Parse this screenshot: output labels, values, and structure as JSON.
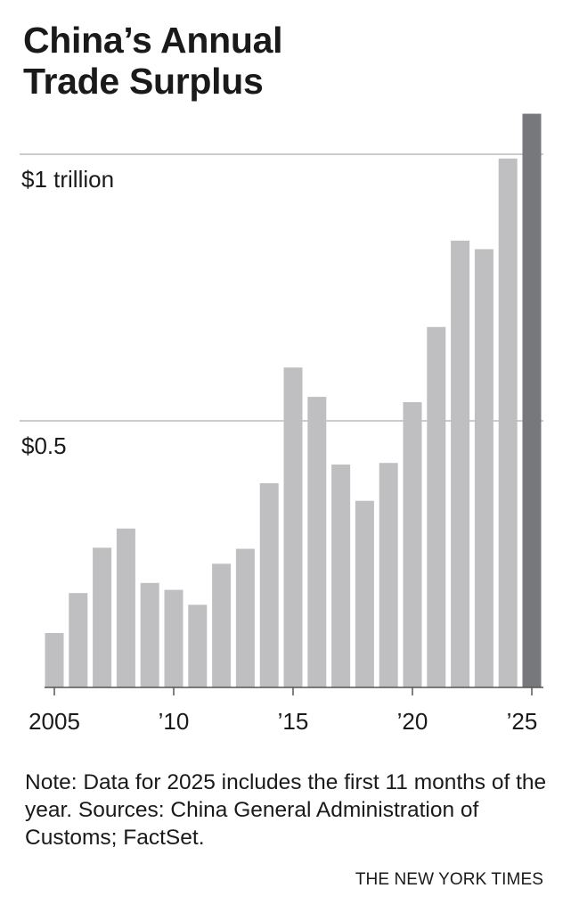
{
  "title_lines": [
    "China’s Annual",
    "Trade Surplus"
  ],
  "chart_data": {
    "type": "bar",
    "x": [
      2005,
      2006,
      2007,
      2008,
      2009,
      2010,
      2011,
      2012,
      2013,
      2014,
      2015,
      2016,
      2017,
      2018,
      2019,
      2020,
      2021,
      2022,
      2023,
      2024,
      2025
    ],
    "values": [
      0.102,
      0.177,
      0.262,
      0.298,
      0.196,
      0.183,
      0.155,
      0.232,
      0.26,
      0.383,
      0.6,
      0.545,
      0.418,
      0.35,
      0.421,
      0.535,
      0.676,
      0.838,
      0.822,
      0.992,
      1.076
    ],
    "highlight_index": 20,
    "ylim": [
      0,
      1.1
    ],
    "yticks": [
      {
        "value": 0.5,
        "label": "$0.5"
      },
      {
        "value": 1.0,
        "label": "$1 trillion"
      }
    ],
    "xticks": [
      {
        "value": 2005,
        "label": "2005"
      },
      {
        "value": 2010,
        "label": "’10"
      },
      {
        "value": 2015,
        "label": "’15"
      },
      {
        "value": 2020,
        "label": "’20"
      },
      {
        "value": 2025,
        "label": "’25"
      }
    ],
    "colors": {
      "bar": "#bfbfc1",
      "highlight": "#77787c",
      "grid": "#9a9a9a",
      "axis": "#555555"
    }
  },
  "note": "Note: Data for 2025 includes the first 11 months of the year. Sources: China General Administration of Customs; FactSet.",
  "credit": "THE NEW YORK TIMES"
}
